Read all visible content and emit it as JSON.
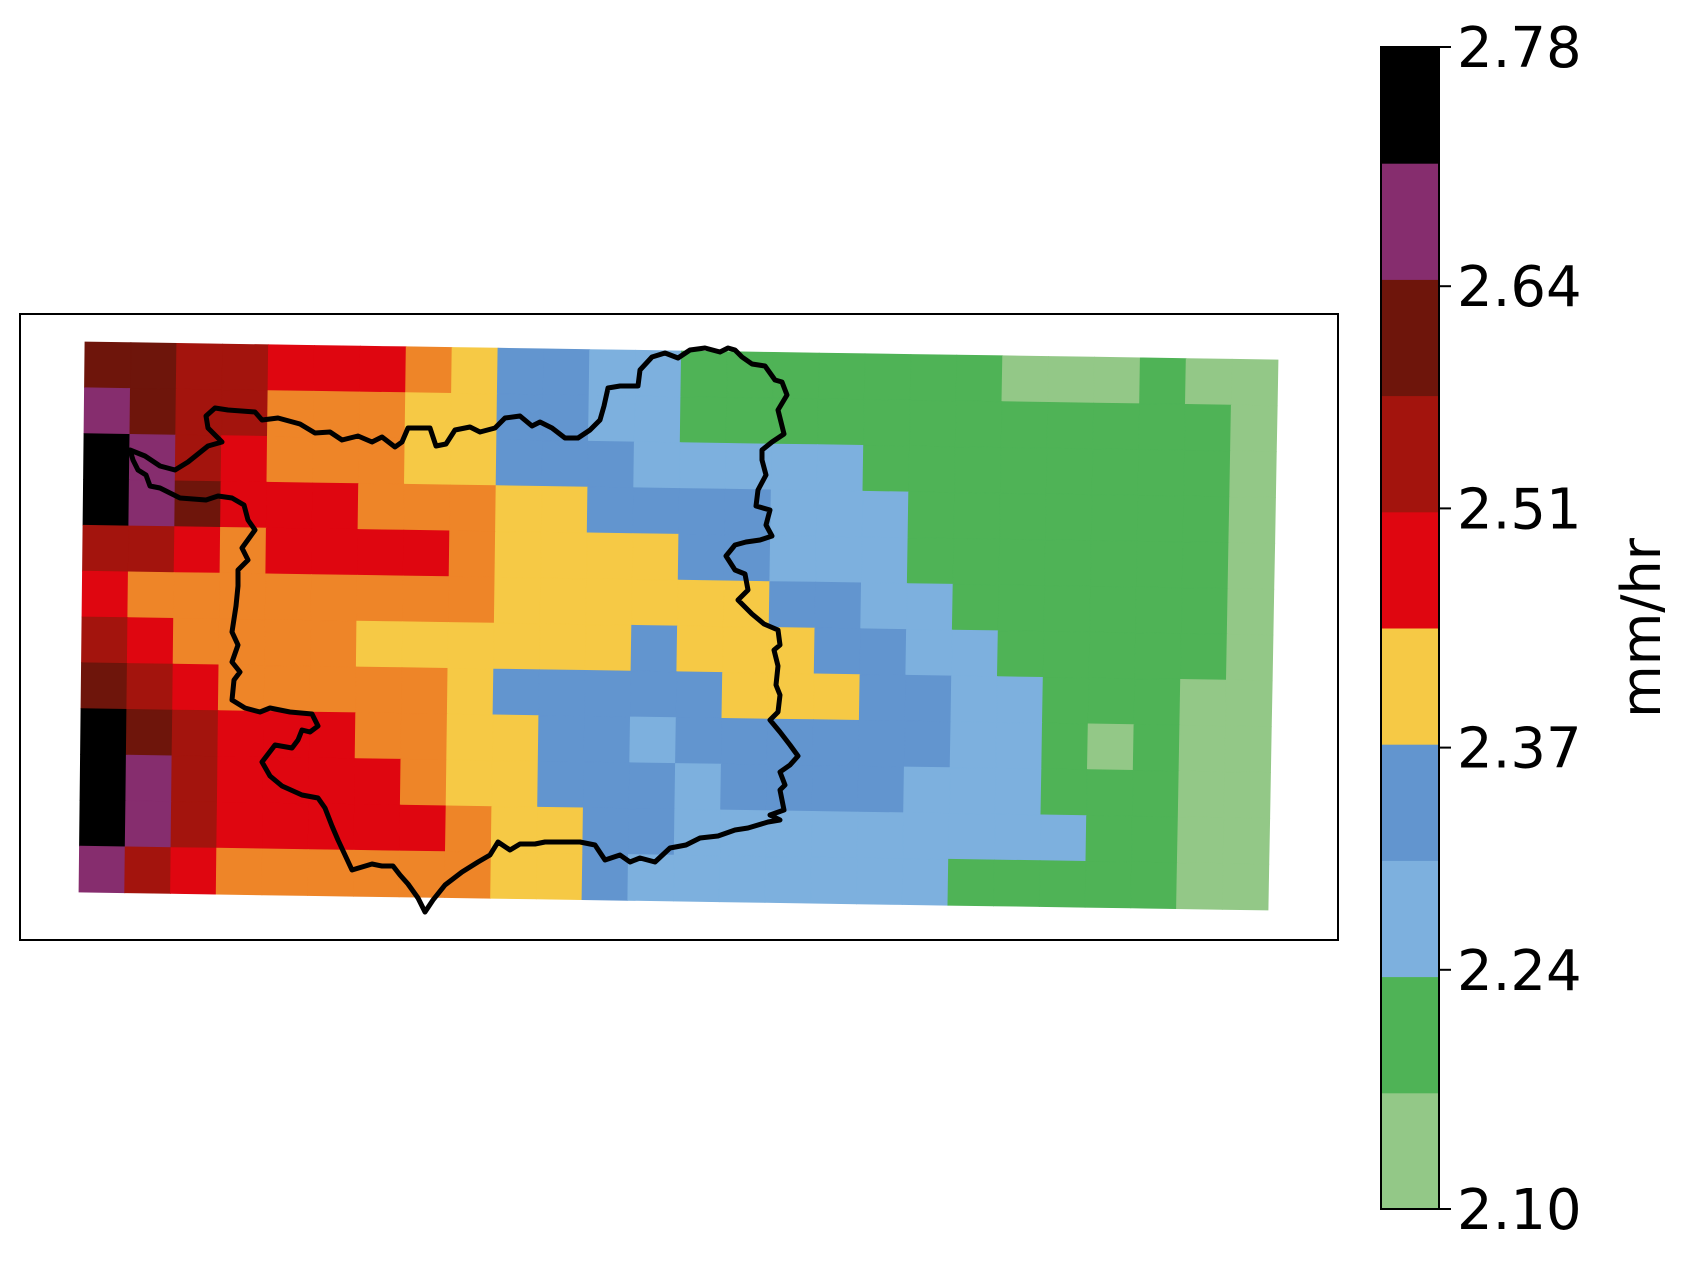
{
  "colors": {
    "background": "#ffffff",
    "frame": "#000000",
    "outline": "#000000",
    "palette": [
      "#93c887",
      "#4fb356",
      "#7db0de",
      "#6295cf",
      "#f6c945",
      "#ee8528",
      "#df0610",
      "#a3140d",
      "#6e150b",
      "#862d6e",
      "#000000"
    ]
  },
  "colorbar": {
    "unit": "mm/hr",
    "ticks": [
      "2.10",
      "2.24",
      "2.37",
      "2.51",
      "2.64",
      "2.78"
    ],
    "levels": [
      2.1,
      2.24,
      2.37,
      2.51,
      2.64,
      2.78
    ],
    "bins": 10
  },
  "chart_data": {
    "type": "heatmap",
    "title": "",
    "value_range": [
      2.1,
      2.78
    ],
    "unit": "mm/hr",
    "rows": 12,
    "cols": 26,
    "grid_class_index": [
      [
        8,
        8,
        7,
        7,
        6,
        6,
        6,
        5,
        4,
        3,
        3,
        2,
        2,
        1,
        1,
        1,
        1,
        1,
        1,
        1,
        0,
        0,
        0,
        1,
        0,
        0
      ],
      [
        9,
        8,
        7,
        7,
        5,
        5,
        5,
        4,
        4,
        3,
        3,
        2,
        2,
        1,
        1,
        1,
        1,
        1,
        1,
        1,
        1,
        1,
        1,
        1,
        1,
        0
      ],
      [
        10,
        9,
        7,
        6,
        5,
        5,
        5,
        4,
        4,
        3,
        3,
        3,
        2,
        2,
        2,
        2,
        2,
        1,
        1,
        1,
        1,
        1,
        1,
        1,
        1,
        0
      ],
      [
        10,
        9,
        8,
        6,
        6,
        6,
        5,
        5,
        5,
        4,
        4,
        3,
        3,
        3,
        3,
        2,
        2,
        2,
        1,
        1,
        1,
        1,
        1,
        1,
        1,
        0
      ],
      [
        7,
        7,
        6,
        5,
        6,
        6,
        6,
        6,
        5,
        4,
        4,
        4,
        4,
        3,
        3,
        2,
        2,
        2,
        1,
        1,
        1,
        1,
        1,
        1,
        1,
        0
      ],
      [
        6,
        5,
        5,
        5,
        5,
        5,
        5,
        5,
        5,
        4,
        4,
        4,
        4,
        4,
        4,
        3,
        3,
        2,
        2,
        1,
        1,
        1,
        1,
        1,
        1,
        0
      ],
      [
        7,
        6,
        5,
        5,
        5,
        5,
        4,
        4,
        4,
        4,
        4,
        4,
        3,
        4,
        4,
        4,
        3,
        3,
        2,
        2,
        1,
        1,
        1,
        1,
        1,
        0
      ],
      [
        8,
        7,
        6,
        5,
        5,
        5,
        5,
        5,
        4,
        3,
        3,
        3,
        3,
        3,
        4,
        4,
        4,
        3,
        3,
        2,
        2,
        1,
        1,
        1,
        0,
        0
      ],
      [
        10,
        8,
        7,
        6,
        6,
        6,
        5,
        5,
        4,
        4,
        3,
        3,
        2,
        3,
        3,
        3,
        3,
        3,
        3,
        2,
        2,
        1,
        0,
        1,
        0,
        0
      ],
      [
        10,
        9,
        7,
        6,
        6,
        6,
        6,
        5,
        4,
        4,
        3,
        3,
        3,
        2,
        3,
        3,
        3,
        3,
        2,
        2,
        2,
        1,
        1,
        1,
        0,
        0
      ],
      [
        10,
        9,
        7,
        6,
        6,
        6,
        6,
        6,
        5,
        4,
        4,
        3,
        3,
        2,
        2,
        2,
        2,
        2,
        2,
        2,
        2,
        2,
        1,
        1,
        0,
        0
      ],
      [
        9,
        7,
        6,
        5,
        5,
        5,
        5,
        5,
        5,
        4,
        4,
        3,
        2,
        2,
        2,
        2,
        2,
        2,
        2,
        1,
        1,
        1,
        1,
        1,
        0,
        0
      ]
    ]
  }
}
